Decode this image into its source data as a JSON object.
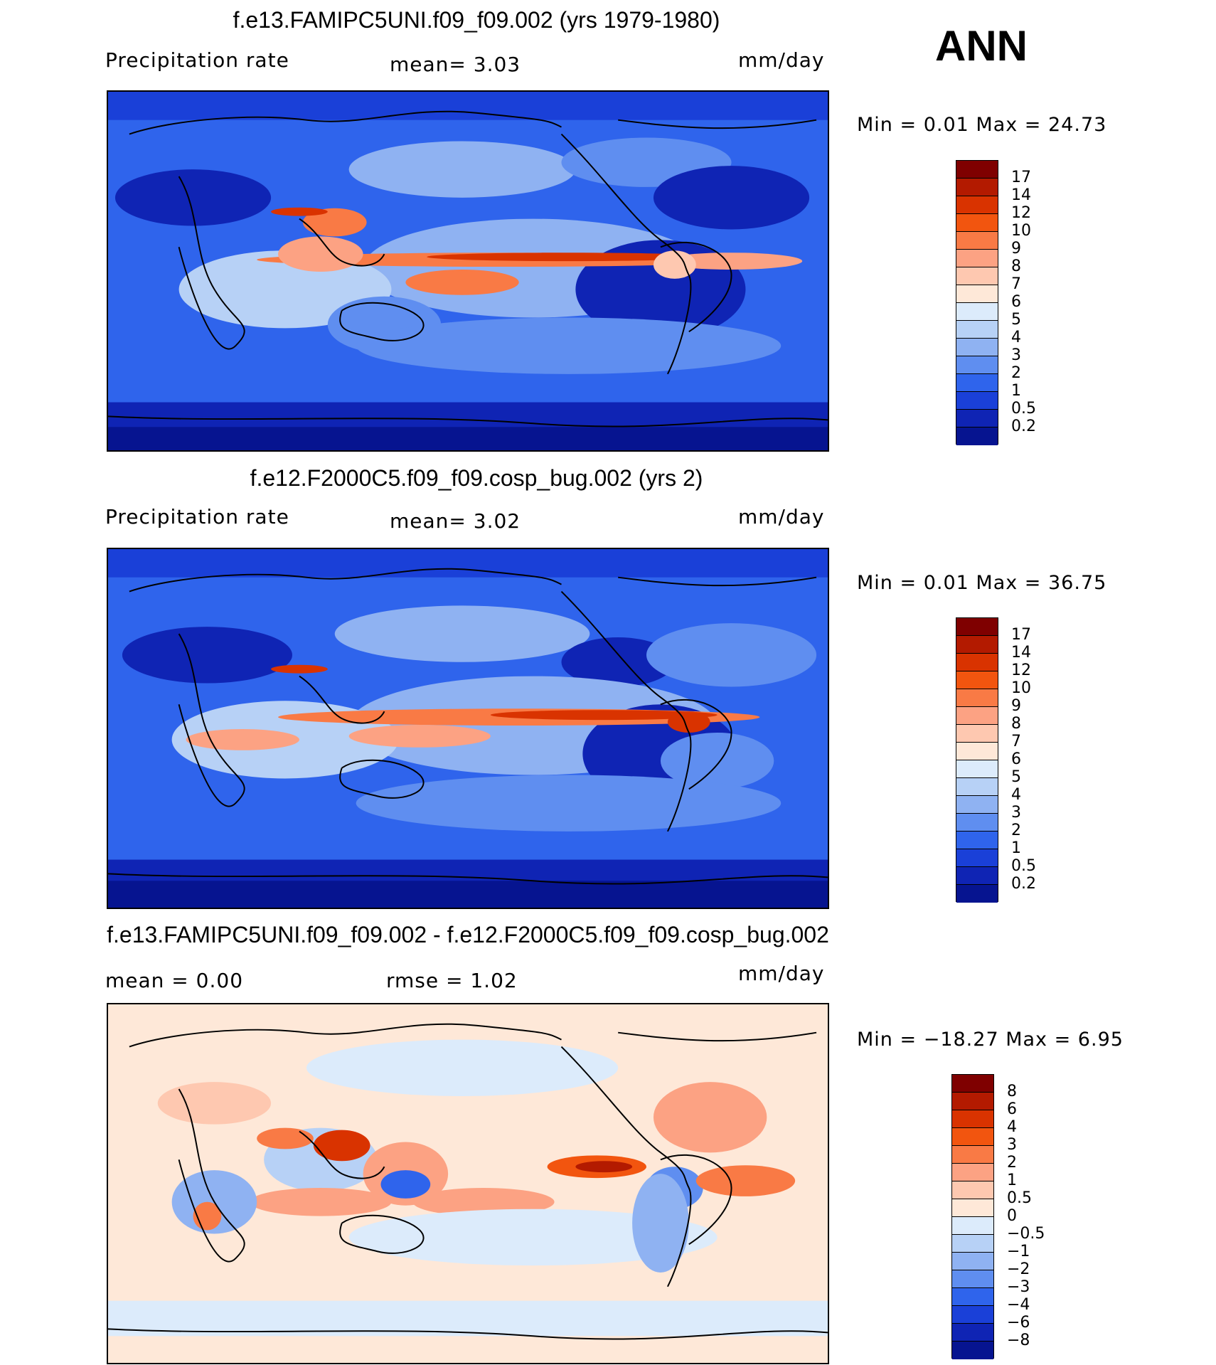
{
  "season": "ANN",
  "panels": [
    {
      "title": "f.e13.FAMIPC5UNI.f09_f09.002 (yrs 1979-1980)",
      "left_label": "Precipitation  rate",
      "mid_label": "mean=     3.03",
      "units": "mm/day",
      "minmax": "Min  =      0.01  Max  =     24.73",
      "colorbar_labels": [
        "17",
        "14",
        "12",
        "10",
        "9",
        "8",
        "7",
        "6",
        "5",
        "4",
        "3",
        "2",
        "1",
        "0.5",
        "0.2"
      ],
      "colors": [
        "#7f0000",
        "#b31a00",
        "#d93300",
        "#f2550f",
        "#f97a45",
        "#fca283",
        "#fec8b0",
        "#fee8d8",
        "#dcebfb",
        "#b7d1f6",
        "#8fb2f2",
        "#5f8ef0",
        "#2f64ec",
        "#1a40d8",
        "#0f24b4",
        "#061490"
      ]
    },
    {
      "title": "f.e12.F2000C5.f09_f09.cosp_bug.002 (yrs 2)",
      "left_label": "Precipitation  rate",
      "mid_label": "mean=     3.02",
      "units": "mm/day",
      "minmax": "Min  =      0.01  Max  =     36.75",
      "colorbar_labels": [
        "17",
        "14",
        "12",
        "10",
        "9",
        "8",
        "7",
        "6",
        "5",
        "4",
        "3",
        "2",
        "1",
        "0.5",
        "0.2"
      ],
      "colors": [
        "#7f0000",
        "#b31a00",
        "#d93300",
        "#f2550f",
        "#f97a45",
        "#fca283",
        "#fec8b0",
        "#fee8d8",
        "#dcebfb",
        "#b7d1f6",
        "#8fb2f2",
        "#5f8ef0",
        "#2f64ec",
        "#1a40d8",
        "#0f24b4",
        "#061490"
      ]
    },
    {
      "title": "f.e13.FAMIPC5UNI.f09_f09.002 - f.e12.F2000C5.f09_f09.cosp_bug.002",
      "left_label": "mean  =      0.00",
      "mid_label": "rmse  =      1.02",
      "units": "mm/day",
      "minmax": "Min  =  −18.27  Max  =      6.95",
      "colorbar_labels": [
        "8",
        "6",
        "4",
        "3",
        "2",
        "1",
        "0.5",
        "0",
        "−0.5",
        "−1",
        "−2",
        "−3",
        "−4",
        "−6",
        "−8"
      ],
      "colors": [
        "#7f0000",
        "#b31a00",
        "#d93300",
        "#f2550f",
        "#f97a45",
        "#fca283",
        "#fec8b0",
        "#fee8d8",
        "#dcebfb",
        "#b7d1f6",
        "#8fb2f2",
        "#5f8ef0",
        "#2f64ec",
        "#1a40d8",
        "#0f24b4",
        "#061490"
      ]
    }
  ]
}
